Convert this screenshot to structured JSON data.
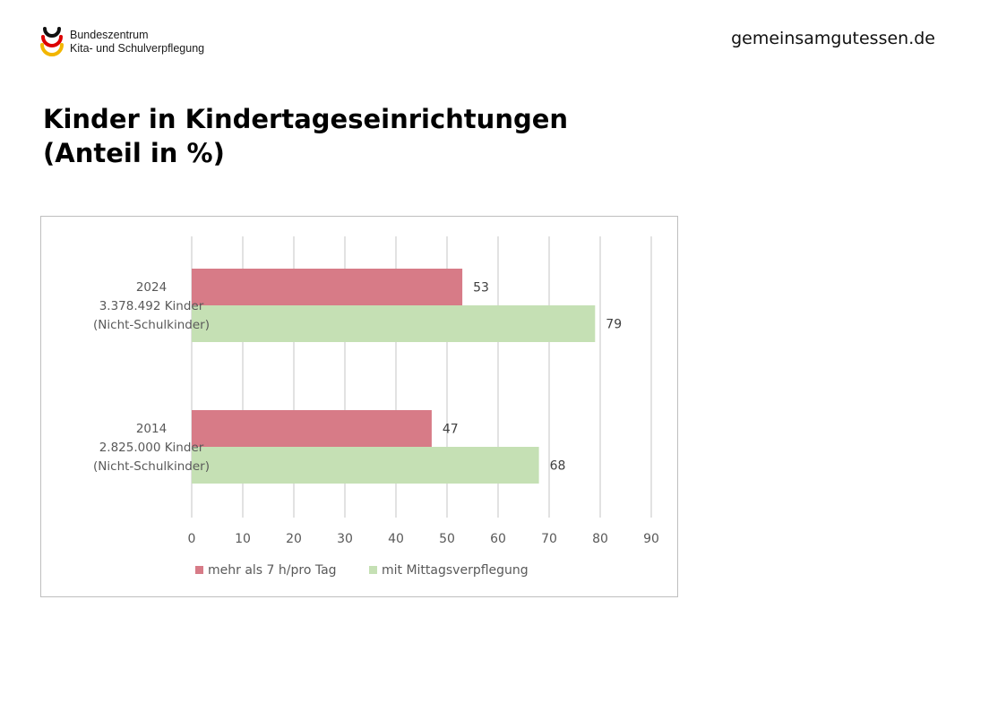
{
  "header": {
    "logo_line1": "Bundeszentrum",
    "logo_line2": "Kita- und Schulverpflegung",
    "site_url": "gemeinsamgutessen.de"
  },
  "title": {
    "line1": "Kinder in Kindertageseinrichtungen",
    "line2": "(Anteil in %)"
  },
  "colors": {
    "series1": "#d77b87",
    "series2": "#c5e0b4",
    "grid": "#d9d9d9",
    "logo_black": "#111111",
    "logo_red": "#dd0000",
    "logo_gold": "#f2b600"
  },
  "chart_data": {
    "type": "bar",
    "orientation": "horizontal",
    "categories": [
      [
        "2024",
        "3.378.492 Kinder",
        "(Nicht-Schulkinder)"
      ],
      [
        "2014",
        "2.825.000 Kinder",
        "(Nicht-Schulkinder)"
      ]
    ],
    "series": [
      {
        "name": "mehr als 7 h/pro Tag",
        "values": [
          53,
          47
        ]
      },
      {
        "name": "mit Mittagsverpflegung",
        "values": [
          79,
          68
        ]
      }
    ],
    "xlim": [
      0,
      90
    ],
    "xticks": [
      0,
      10,
      20,
      30,
      40,
      50,
      60,
      70,
      80,
      90
    ],
    "grid": true,
    "legend": "bottom",
    "data_labels": true
  }
}
